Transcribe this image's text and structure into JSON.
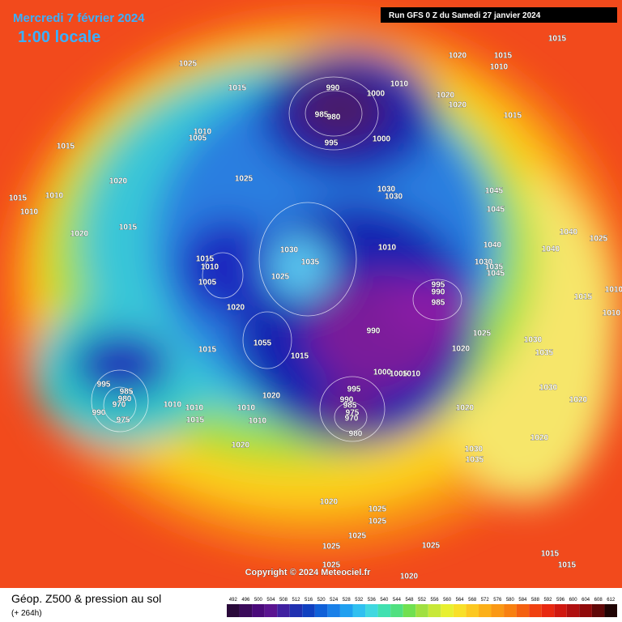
{
  "header": {
    "valid_date": "Mercredi 7 février 2024",
    "local_time": "1:00 locale",
    "run": "Run GFS 0 Z du Samedi 27 janvier 2024"
  },
  "map": {
    "copyright": "Copyright © 2024 Meteociel.fr",
    "isobar_labels": [
      1025,
      1015,
      1015,
      1010,
      1005,
      1020,
      1015,
      1010,
      1010,
      1020,
      1015,
      1025,
      990,
      985,
      980,
      995,
      1000,
      1010,
      1000,
      1020,
      1015,
      1010,
      1015,
      1020,
      1020,
      1015,
      1030,
      1030,
      1045,
      1045,
      1010,
      1030,
      1035,
      1025,
      1015,
      1010,
      1005,
      1020,
      1040,
      1040,
      1040,
      1025,
      1030,
      1035,
      1045,
      995,
      990,
      985,
      990,
      1025,
      1020,
      1010,
      1015,
      1010,
      1030,
      1035,
      1030,
      1020,
      1020,
      1055,
      1015,
      1015,
      995,
      985,
      980,
      970,
      990,
      975,
      1010,
      1010,
      1015,
      1020,
      1010,
      1010,
      1020,
      1000,
      1005,
      1010,
      995,
      990,
      985,
      975,
      970,
      980,
      1020,
      1030,
      1035,
      1020,
      1025,
      1025,
      1025,
      1025,
      1025,
      1025,
      1020,
      1015,
      1015
    ]
  },
  "legend": {
    "title": "Géop. Z500 & pression au sol",
    "lead": "(+ 264h)",
    "scale": [
      492,
      496,
      500,
      504,
      508,
      512,
      516,
      520,
      524,
      528,
      532,
      536,
      540,
      544,
      548,
      552,
      556,
      560,
      564,
      568,
      572,
      576,
      580,
      584,
      588,
      592,
      596,
      600,
      604,
      608,
      612
    ]
  }
}
